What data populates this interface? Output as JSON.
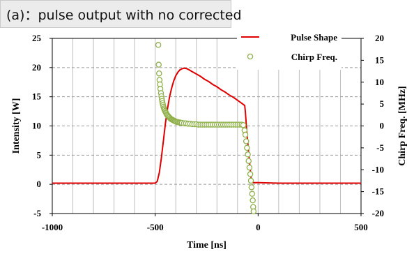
{
  "caption": "(a)：pulse output with  no corrected",
  "chart_data": {
    "type": "line",
    "xlabel": "Time [ns]",
    "ylabel": "Intensity [W]",
    "y2label": "Chirp Freq. [MHz]",
    "xlim": [
      -1000,
      500
    ],
    "ylim": [
      -5,
      25
    ],
    "y2lim": [
      -20,
      20
    ],
    "xticks": [
      "-1000",
      "-500",
      "0",
      "500"
    ],
    "yticks": [
      "-5",
      "0",
      "5",
      "10",
      "15",
      "20",
      "25"
    ],
    "y2ticks": [
      "-20",
      "-15",
      "-10",
      "-5",
      "0",
      "5",
      "10",
      "15",
      "20"
    ],
    "grid": true,
    "legend_position": "top-right",
    "series": [
      {
        "name": "Pulse Shape",
        "axis": "left",
        "color": "#e00000",
        "x": [
          -1000,
          -600,
          -500,
          -490,
          -480,
          -470,
          -460,
          -450,
          -440,
          -430,
          -420,
          -410,
          -400,
          -390,
          -380,
          -370,
          -360,
          -350,
          -340,
          -330,
          -320,
          -300,
          -280,
          -260,
          -240,
          -220,
          -200,
          -180,
          -160,
          -140,
          -120,
          -100,
          -80,
          -65,
          -62,
          -58,
          -54,
          -50,
          -46,
          -42,
          -38,
          -34,
          -30,
          -28,
          -24,
          -20,
          -15,
          0,
          100,
          200,
          300,
          400,
          500
        ],
        "values": [
          0.2,
          0.2,
          0.2,
          0.5,
          2.0,
          4.5,
          7.5,
          10.5,
          13.0,
          15.0,
          16.5,
          17.7,
          18.6,
          19.2,
          19.6,
          19.8,
          19.9,
          19.85,
          19.7,
          19.5,
          19.3,
          18.9,
          18.5,
          18.0,
          17.6,
          17.1,
          16.7,
          16.2,
          15.8,
          15.3,
          14.9,
          14.4,
          13.9,
          13.5,
          12.5,
          10.5,
          8.5,
          7.0,
          5.5,
          4.0,
          2.5,
          1.0,
          0.5,
          0.4,
          0.3,
          0.3,
          0.3,
          0.3,
          0.2,
          0.2,
          0.2,
          0.2,
          0.2
        ]
      },
      {
        "name": "Chirp Freq.",
        "axis": "right",
        "color": "#8fb04a",
        "x": [
          -485,
          -483,
          -481,
          -479,
          -477,
          -475,
          -472,
          -470,
          -468,
          -466,
          -464,
          -462,
          -460,
          -457,
          -455,
          -452,
          -449,
          -446,
          -443,
          -440,
          -436,
          -432,
          -428,
          -424,
          -420,
          -416,
          -412,
          -408,
          -404,
          -400,
          -395,
          -390,
          -385,
          -380,
          -375,
          -370,
          -360,
          -350,
          -340,
          -330,
          -320,
          -310,
          -300,
          -290,
          -280,
          -270,
          -260,
          -250,
          -240,
          -230,
          -220,
          -210,
          -200,
          -190,
          -180,
          -170,
          -160,
          -150,
          -140,
          -130,
          -120,
          -110,
          -100,
          -90,
          -80,
          -72,
          -66,
          -62,
          -58,
          -54,
          -50,
          -46,
          -42,
          -38,
          -35,
          -32,
          -29,
          -26,
          -24,
          -22
        ],
        "values": [
          18.5,
          14,
          12,
          10.5,
          9.5,
          8.5,
          7.5,
          6.8,
          6.2,
          5.7,
          5.2,
          4.8,
          4.4,
          4.0,
          3.7,
          3.4,
          3.1,
          2.9,
          2.6,
          2.4,
          2.2,
          2.0,
          1.8,
          1.6,
          1.5,
          1.4,
          1.3,
          1.2,
          1.1,
          1.0,
          0.9,
          0.9,
          0.8,
          0.8,
          0.7,
          0.7,
          0.6,
          0.6,
          0.5,
          0.5,
          0.4,
          0.4,
          0.4,
          0.3,
          0.3,
          0.3,
          0.3,
          0.3,
          0.3,
          0.3,
          0.3,
          0.3,
          0.3,
          0.3,
          0.3,
          0.3,
          0.3,
          0.3,
          0.3,
          0.3,
          0.3,
          0.3,
          0.3,
          0.3,
          0.3,
          0.2,
          -1.0,
          -2.0,
          -3.5,
          -5.0,
          -6.5,
          -8.0,
          -9.5,
          -11.0,
          -12.5,
          -14.0,
          -15.5,
          -17.0,
          -18.5,
          -19.5
        ]
      }
    ]
  }
}
